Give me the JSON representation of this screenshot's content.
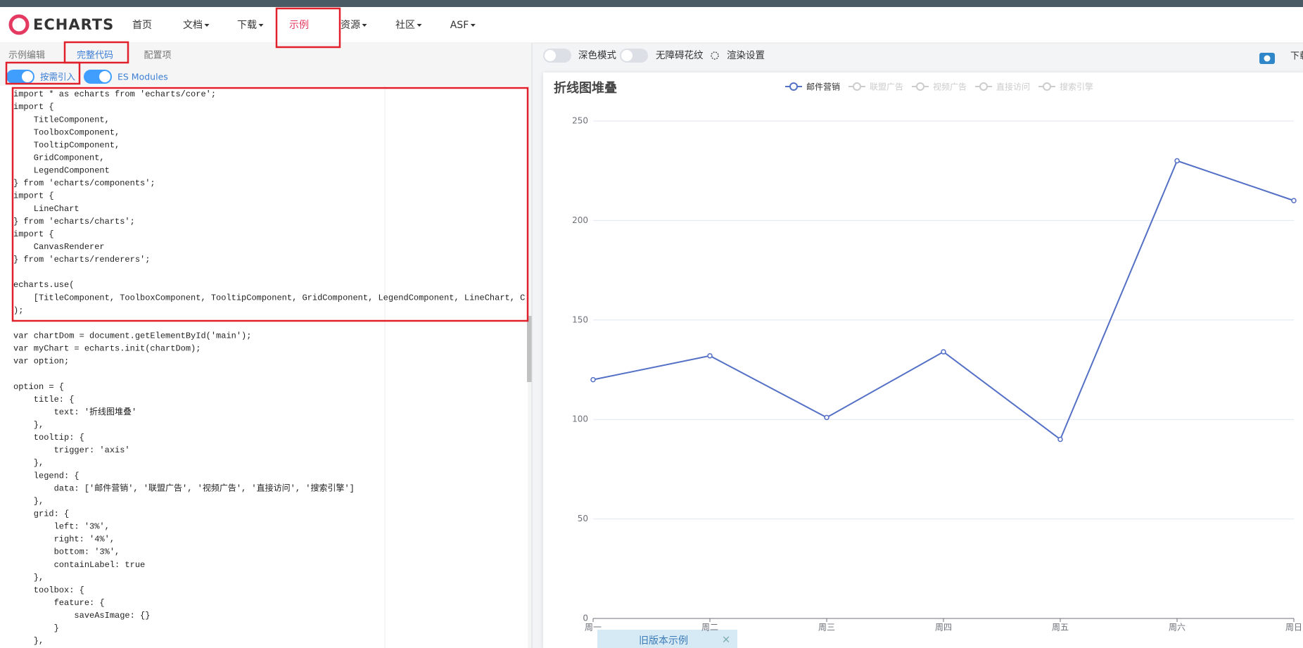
{
  "nav": {
    "logo": "ECHARTS",
    "items": [
      "首页",
      "文档",
      "下载",
      "示例",
      "资源",
      "社区",
      "ASF"
    ],
    "active": 3,
    "dropdown": [
      false,
      true,
      true,
      false,
      true,
      true,
      true
    ]
  },
  "tabs": {
    "items": [
      "示例编辑",
      "完整代码",
      "配置项"
    ],
    "active": 1
  },
  "toggles": [
    "按需引入",
    "ES Modules"
  ],
  "code": [
    [
      "import * as echarts from 'echarts/core';",
      "import {",
      "    TitleComponent,",
      "    ToolboxComponent,",
      "    TooltipComponent,",
      "    GridComponent,",
      "    LegendComponent",
      "} from 'echarts/components';",
      "import {",
      "    LineChart",
      "} from 'echarts/charts';",
      "import {",
      "    CanvasRenderer",
      "} from 'echarts/renderers';"
    ],
    [
      "echarts.use(",
      "    [TitleComponent, ToolboxComponent, TooltipComponent, GridComponent, LegendComponent, LineChart, CanvasRenderer]",
      ");"
    ],
    [
      "var chartDom = document.getElementById('main');",
      "var myChart = echarts.init(chartDom);",
      "var option;"
    ],
    [
      "option = {",
      "    title: {",
      "        text: '折线图堆叠'",
      "    },",
      "    tooltip: {",
      "        trigger: 'axis'",
      "    },",
      "    legend: {",
      "        data: ['邮件营销', '联盟广告', '视频广告', '直接访问', '搜索引擎']",
      "    },",
      "    grid: {",
      "        left: '3%',",
      "        right: '4%',",
      "        bottom: '3%',",
      "        containLabel: true",
      "    },",
      "    toolbox: {",
      "        feature: {",
      "            saveAsImage: {}",
      "        }",
      "    },"
    ]
  ],
  "toolbar": {
    "items": [
      "深色模式",
      "无障碍花纹",
      "渲染设置"
    ],
    "download": "下载"
  },
  "chart_data": {
    "type": "line",
    "title": "折线图堆叠",
    "categories": [
      "周一",
      "周二",
      "周三",
      "周四",
      "周五",
      "周六",
      "周日"
    ],
    "series": [
      {
        "name": "邮件营销",
        "color": "#5470c6",
        "values": [
          120,
          132,
          101,
          134,
          90,
          230,
          210
        ]
      }
    ],
    "hidden_series": [
      "联盟广告",
      "视频广告",
      "直接访问",
      "搜索引擎"
    ],
    "ylim": [
      0,
      250
    ],
    "yticks": [
      0,
      50,
      100,
      150,
      200,
      250
    ],
    "grid": true
  },
  "footer_tab": "旧版本示例"
}
